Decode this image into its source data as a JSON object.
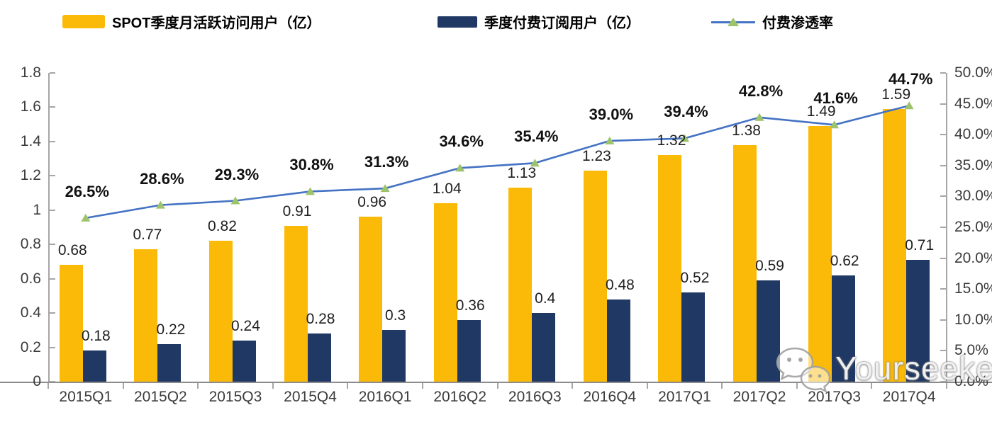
{
  "legend": {
    "items": [
      {
        "label": "SPOT季度月活跃访问用户（亿）",
        "type": "bar",
        "color": "#FBBA07"
      },
      {
        "label": "季度付费订阅用户（亿）",
        "type": "bar",
        "color": "#1F3864"
      },
      {
        "label": "付费渗透率",
        "type": "line",
        "color": "#4472C4",
        "marker_color": "#9DC36B"
      }
    ]
  },
  "watermark": {
    "text": "Yourseeker",
    "icon": "wechat-icon"
  },
  "chart_data": {
    "type": "combo",
    "categories": [
      "2015Q1",
      "2015Q2",
      "2015Q3",
      "2015Q4",
      "2016Q1",
      "2016Q2",
      "2016Q3",
      "2016Q4",
      "2017Q1",
      "2017Q2",
      "2017Q3",
      "2017Q4"
    ],
    "series": [
      {
        "name": "SPOT季度月活跃访问用户（亿）",
        "type": "bar",
        "axis": "left",
        "color": "#FBBA07",
        "values": [
          0.68,
          0.77,
          0.82,
          0.91,
          0.96,
          1.04,
          1.13,
          1.23,
          1.32,
          1.38,
          1.49,
          1.59
        ],
        "labels": [
          "0.68",
          "0.77",
          "0.82",
          "0.91",
          "0.96",
          "1.04",
          "1.13",
          "1.23",
          "1.32",
          "1.38",
          "1.49",
          "1.59"
        ]
      },
      {
        "name": "季度付费订阅用户（亿）",
        "type": "bar",
        "axis": "left",
        "color": "#1F3864",
        "values": [
          0.18,
          0.22,
          0.24,
          0.28,
          0.3,
          0.36,
          0.4,
          0.48,
          0.52,
          0.59,
          0.62,
          0.71
        ],
        "labels": [
          "0.18",
          "0.22",
          "0.24",
          "0.28",
          "0.3",
          "0.36",
          "0.4",
          "0.48",
          "0.52",
          "0.59",
          "0.62",
          "0.71"
        ]
      },
      {
        "name": "付费渗透率",
        "type": "line",
        "axis": "right",
        "color": "#4472C4",
        "marker": "triangle",
        "marker_color": "#9DC36B",
        "values": [
          26.5,
          28.6,
          29.3,
          30.8,
          31.3,
          34.6,
          35.4,
          39.0,
          39.4,
          42.8,
          41.6,
          44.7
        ],
        "labels": [
          "26.5%",
          "28.6%",
          "29.3%",
          "30.8%",
          "31.3%",
          "34.6%",
          "35.4%",
          "39.0%",
          "39.4%",
          "42.8%",
          "41.6%",
          "44.7%"
        ]
      }
    ],
    "left_axis": {
      "min": 0,
      "max": 1.8,
      "step": 0.2,
      "tick_labels": [
        "1.8",
        "1.6",
        "1.4",
        "1.2",
        "1",
        "0.8",
        "0.6",
        "0.4",
        "0.2",
        "0"
      ]
    },
    "right_axis": {
      "min": 0,
      "max": 50,
      "step": 5,
      "tick_labels": [
        "50.0%",
        "45.0%",
        "40.0%",
        "35.0%",
        "30.0%",
        "25.0%",
        "20.0%",
        "15.0%",
        "10.0%",
        "5.0%",
        "0.0%"
      ]
    },
    "grid": false,
    "legend_position": "top"
  }
}
